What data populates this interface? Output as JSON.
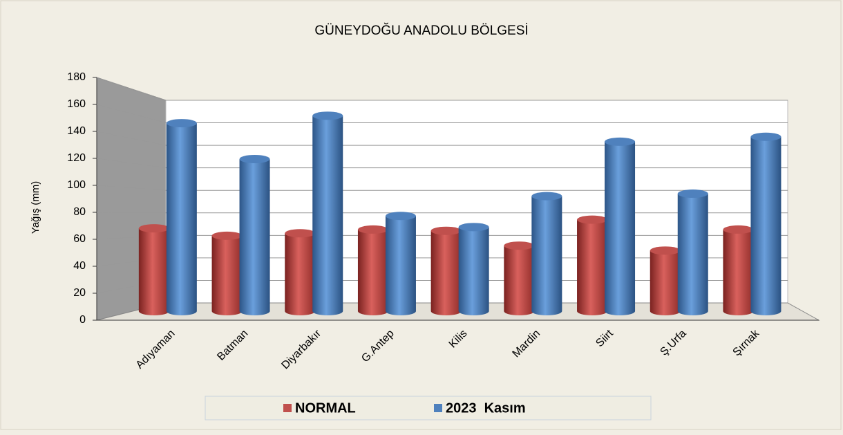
{
  "chart_data": {
    "type": "bar3d",
    "title": "GÜNEYDOĞU ANADOLU BÖLGESİ",
    "y_axis_label": "Yağış (mm)",
    "categories": [
      "Adıyaman",
      "Batman",
      "Diyarbakır",
      "G.Antep",
      "Kilis",
      "Mardin",
      "Siirt",
      "Ş.Urfa",
      "Şırnak"
    ],
    "series": [
      {
        "name": "NORMAL",
        "color": "#c0504d",
        "values": [
          67,
          61,
          63,
          66,
          65,
          53,
          74,
          49,
          66
        ]
      },
      {
        "name": "2023  Kasım",
        "color": "#4f81bd",
        "values": [
          152,
          123,
          158,
          77,
          68,
          93,
          137,
          95,
          141
        ]
      }
    ],
    "ylim": [
      0,
      180
    ],
    "yticks": [
      0,
      20,
      40,
      60,
      80,
      100,
      120,
      140,
      160,
      180
    ],
    "grid": true,
    "legend": "bottom"
  }
}
